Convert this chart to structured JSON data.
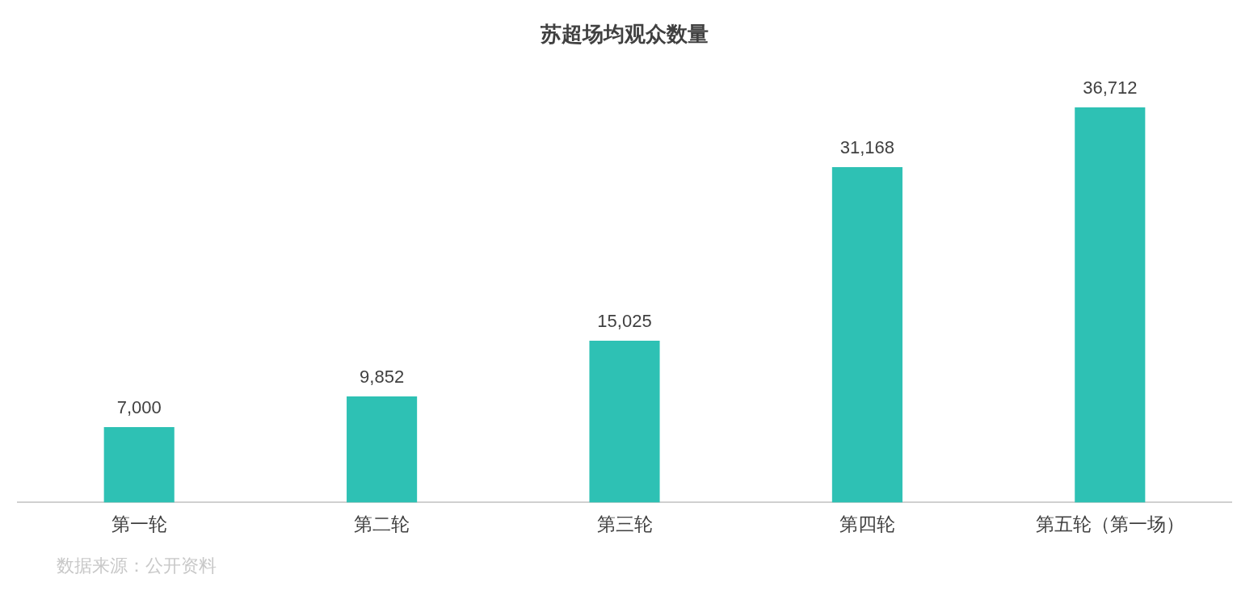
{
  "chart_data": {
    "type": "bar",
    "title": "苏超场均观众数量",
    "categories": [
      "第一轮",
      "第二轮",
      "第三轮",
      "第四轮",
      "第五轮（第一场）"
    ],
    "values": [
      7000,
      9852,
      15025,
      31168,
      36712
    ],
    "color": "#2ec1b4",
    "value_labels": [
      "7,000",
      "9,852",
      "15,025",
      "31,168",
      "36,712"
    ],
    "grid": false,
    "legend": false,
    "tick_labels": "x",
    "annotations": [
      "数据来源：公开资料"
    ]
  }
}
